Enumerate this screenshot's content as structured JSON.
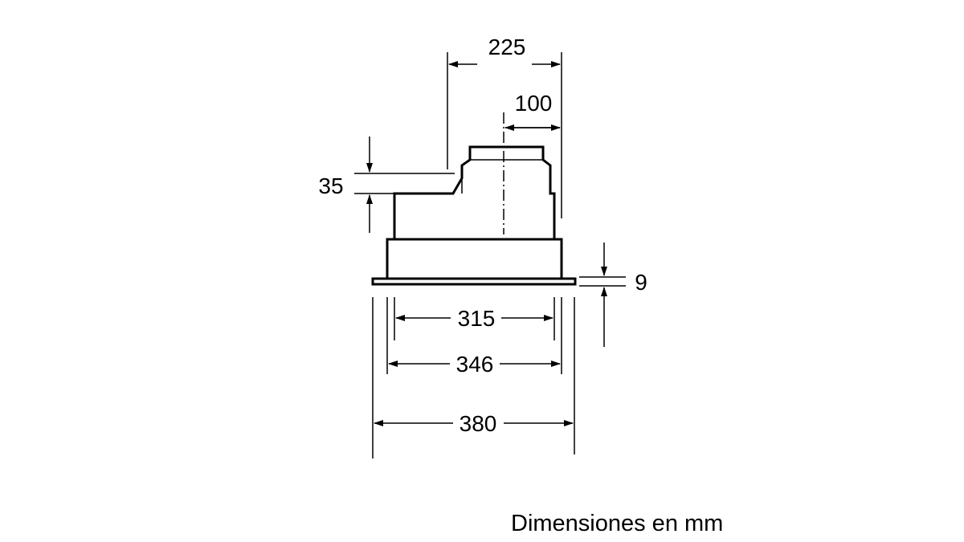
{
  "dimensions": {
    "top_width": "225",
    "spigot_offset": "100",
    "step_height": "35",
    "flange_thickness": "9",
    "inner_width": "315",
    "body_width": "346",
    "flange_width": "380"
  },
  "caption": "Dimensiones en mm",
  "colors": {
    "line": "#000000",
    "background": "#ffffff"
  }
}
